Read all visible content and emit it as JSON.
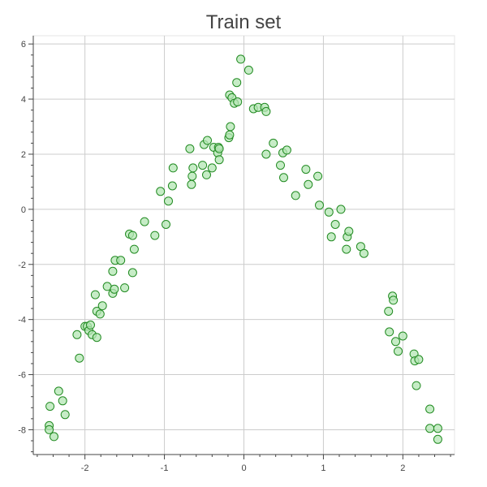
{
  "chart_data": {
    "type": "scatter",
    "title": "Train set",
    "xlabel": "",
    "ylabel": "",
    "xlim": [
      -2.65,
      2.65
    ],
    "ylim": [
      -8.9,
      6.3
    ],
    "xticks": [
      -2,
      -1,
      0,
      1,
      2
    ],
    "yticks": [
      -8,
      -6,
      -4,
      -2,
      0,
      2,
      4,
      6
    ],
    "xtick_labels": [
      "-2",
      "-1",
      "0",
      "1",
      "2"
    ],
    "ytick_labels": [
      "-8",
      "-6",
      "-4",
      "-2",
      "0",
      "2",
      "4",
      "6"
    ],
    "grid": true,
    "marker_fill": "#b3e6b3",
    "marker_edge": "#228b22",
    "series": [
      {
        "points": [
          [
            -2.45,
            -7.85
          ],
          [
            -2.45,
            -8.0
          ],
          [
            -2.44,
            -7.15
          ],
          [
            -2.39,
            -8.25
          ],
          [
            -2.33,
            -6.6
          ],
          [
            -2.28,
            -6.95
          ],
          [
            -2.25,
            -7.45
          ],
          [
            -2.1,
            -4.55
          ],
          [
            -2.07,
            -5.4
          ],
          [
            -2.0,
            -4.25
          ],
          [
            -1.97,
            -4.25
          ],
          [
            -1.95,
            -4.4
          ],
          [
            -1.93,
            -4.2
          ],
          [
            -1.91,
            -4.55
          ],
          [
            -1.85,
            -4.65
          ],
          [
            -1.87,
            -3.1
          ],
          [
            -1.85,
            -3.7
          ],
          [
            -1.81,
            -3.8
          ],
          [
            -1.78,
            -3.5
          ],
          [
            -1.72,
            -2.8
          ],
          [
            -1.65,
            -3.05
          ],
          [
            -1.65,
            -2.25
          ],
          [
            -1.62,
            -1.85
          ],
          [
            -1.63,
            -2.9
          ],
          [
            -1.55,
            -1.85
          ],
          [
            -1.5,
            -2.85
          ],
          [
            -1.44,
            -0.9
          ],
          [
            -1.4,
            -0.95
          ],
          [
            -1.4,
            -2.3
          ],
          [
            -1.38,
            -1.45
          ],
          [
            -1.25,
            -0.45
          ],
          [
            -1.12,
            -0.95
          ],
          [
            -1.05,
            0.65
          ],
          [
            -0.98,
            -0.55
          ],
          [
            -0.95,
            0.3
          ],
          [
            -0.9,
            0.85
          ],
          [
            -0.89,
            1.5
          ],
          [
            -0.68,
            2.2
          ],
          [
            -0.66,
            0.9
          ],
          [
            -0.65,
            1.2
          ],
          [
            -0.64,
            1.5
          ],
          [
            -0.52,
            1.6
          ],
          [
            -0.5,
            2.35
          ],
          [
            -0.47,
            1.25
          ],
          [
            -0.46,
            2.5
          ],
          [
            -0.4,
            1.5
          ],
          [
            -0.38,
            2.25
          ],
          [
            -0.33,
            2.05
          ],
          [
            -0.32,
            2.25
          ],
          [
            -0.31,
            2.2
          ],
          [
            -0.31,
            1.8
          ],
          [
            -0.19,
            2.6
          ],
          [
            -0.18,
            4.15
          ],
          [
            -0.18,
            2.7
          ],
          [
            -0.17,
            3.0
          ],
          [
            -0.15,
            4.05
          ],
          [
            -0.12,
            3.85
          ],
          [
            -0.09,
            4.6
          ],
          [
            -0.08,
            3.9
          ],
          [
            -0.04,
            5.45
          ],
          [
            0.06,
            5.05
          ],
          [
            0.12,
            3.65
          ],
          [
            0.18,
            3.7
          ],
          [
            0.26,
            3.7
          ],
          [
            0.28,
            3.55
          ],
          [
            0.28,
            2.0
          ],
          [
            0.37,
            2.4
          ],
          [
            0.46,
            1.6
          ],
          [
            0.49,
            2.05
          ],
          [
            0.5,
            1.15
          ],
          [
            0.54,
            2.15
          ],
          [
            0.65,
            0.5
          ],
          [
            0.78,
            1.45
          ],
          [
            0.81,
            0.9
          ],
          [
            0.93,
            1.2
          ],
          [
            0.95,
            0.15
          ],
          [
            1.07,
            -0.1
          ],
          [
            1.1,
            -1.0
          ],
          [
            1.15,
            -0.55
          ],
          [
            1.22,
            0.0
          ],
          [
            1.29,
            -1.45
          ],
          [
            1.3,
            -1.0
          ],
          [
            1.32,
            -0.8
          ],
          [
            1.47,
            -1.35
          ],
          [
            1.51,
            -1.6
          ],
          [
            1.82,
            -3.7
          ],
          [
            1.83,
            -4.45
          ],
          [
            1.87,
            -3.15
          ],
          [
            1.88,
            -3.3
          ],
          [
            1.91,
            -4.8
          ],
          [
            1.94,
            -5.15
          ],
          [
            2.0,
            -4.6
          ],
          [
            2.14,
            -5.25
          ],
          [
            2.15,
            -5.5
          ],
          [
            2.17,
            -6.4
          ],
          [
            2.2,
            -5.45
          ],
          [
            2.34,
            -7.25
          ],
          [
            2.34,
            -7.95
          ],
          [
            2.44,
            -7.95
          ],
          [
            2.44,
            -8.35
          ]
        ]
      }
    ]
  }
}
